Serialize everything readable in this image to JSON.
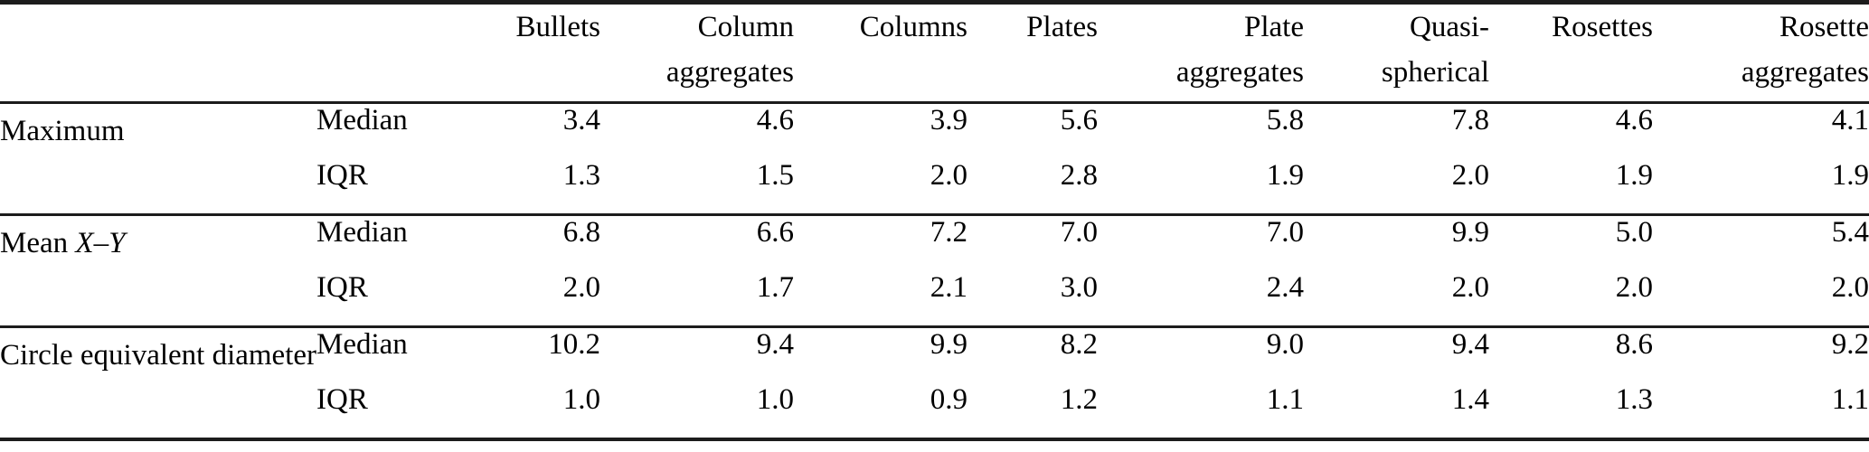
{
  "table": {
    "colors": {
      "text": "#000000",
      "rule": "#1c1c1c",
      "background": "#ffffff"
    },
    "columns": [
      {
        "lines": [
          "Bullets"
        ]
      },
      {
        "lines": [
          "Column",
          "aggregates"
        ]
      },
      {
        "lines": [
          "Columns"
        ]
      },
      {
        "lines": [
          "Plates"
        ]
      },
      {
        "lines": [
          "Plate",
          "aggregates"
        ]
      },
      {
        "lines": [
          "Quasi-",
          "spherical"
        ]
      },
      {
        "lines": [
          "Rosettes"
        ]
      },
      {
        "lines": [
          "Rosette",
          "aggregates"
        ]
      }
    ],
    "stat_labels": {
      "median": "Median",
      "iqr": "IQR"
    },
    "sections": [
      {
        "label_text": "Maximum",
        "label_parts": [
          {
            "text": "Maximum",
            "italic": false
          }
        ],
        "median": [
          "3.4",
          "4.6",
          "3.9",
          "5.6",
          "5.8",
          "7.8",
          "4.6",
          "4.1"
        ],
        "iqr": [
          "1.3",
          "1.5",
          "2.0",
          "2.8",
          "1.9",
          "2.0",
          "1.9",
          "1.9"
        ]
      },
      {
        "label_text": "Mean X–Y",
        "label_parts": [
          {
            "text": "Mean ",
            "italic": false
          },
          {
            "text": "X",
            "italic": true
          },
          {
            "text": "–",
            "italic": false
          },
          {
            "text": "Y",
            "italic": true
          }
        ],
        "median": [
          "6.8",
          "6.6",
          "7.2",
          "7.0",
          "7.0",
          "9.9",
          "5.0",
          "5.4"
        ],
        "iqr": [
          "2.0",
          "1.7",
          "2.1",
          "3.0",
          "2.4",
          "2.0",
          "2.0",
          "2.0"
        ]
      },
      {
        "label_text": "Circle equivalent diameter",
        "label_parts": [
          {
            "text": "Circle equivalent diameter",
            "italic": false
          }
        ],
        "median": [
          "10.2",
          "9.4",
          "9.9",
          "8.2",
          "9.0",
          "9.4",
          "8.6",
          "9.2"
        ],
        "iqr": [
          "1.0",
          "1.0",
          "0.9",
          "1.2",
          "1.1",
          "1.4",
          "1.3",
          "1.1"
        ]
      }
    ]
  }
}
